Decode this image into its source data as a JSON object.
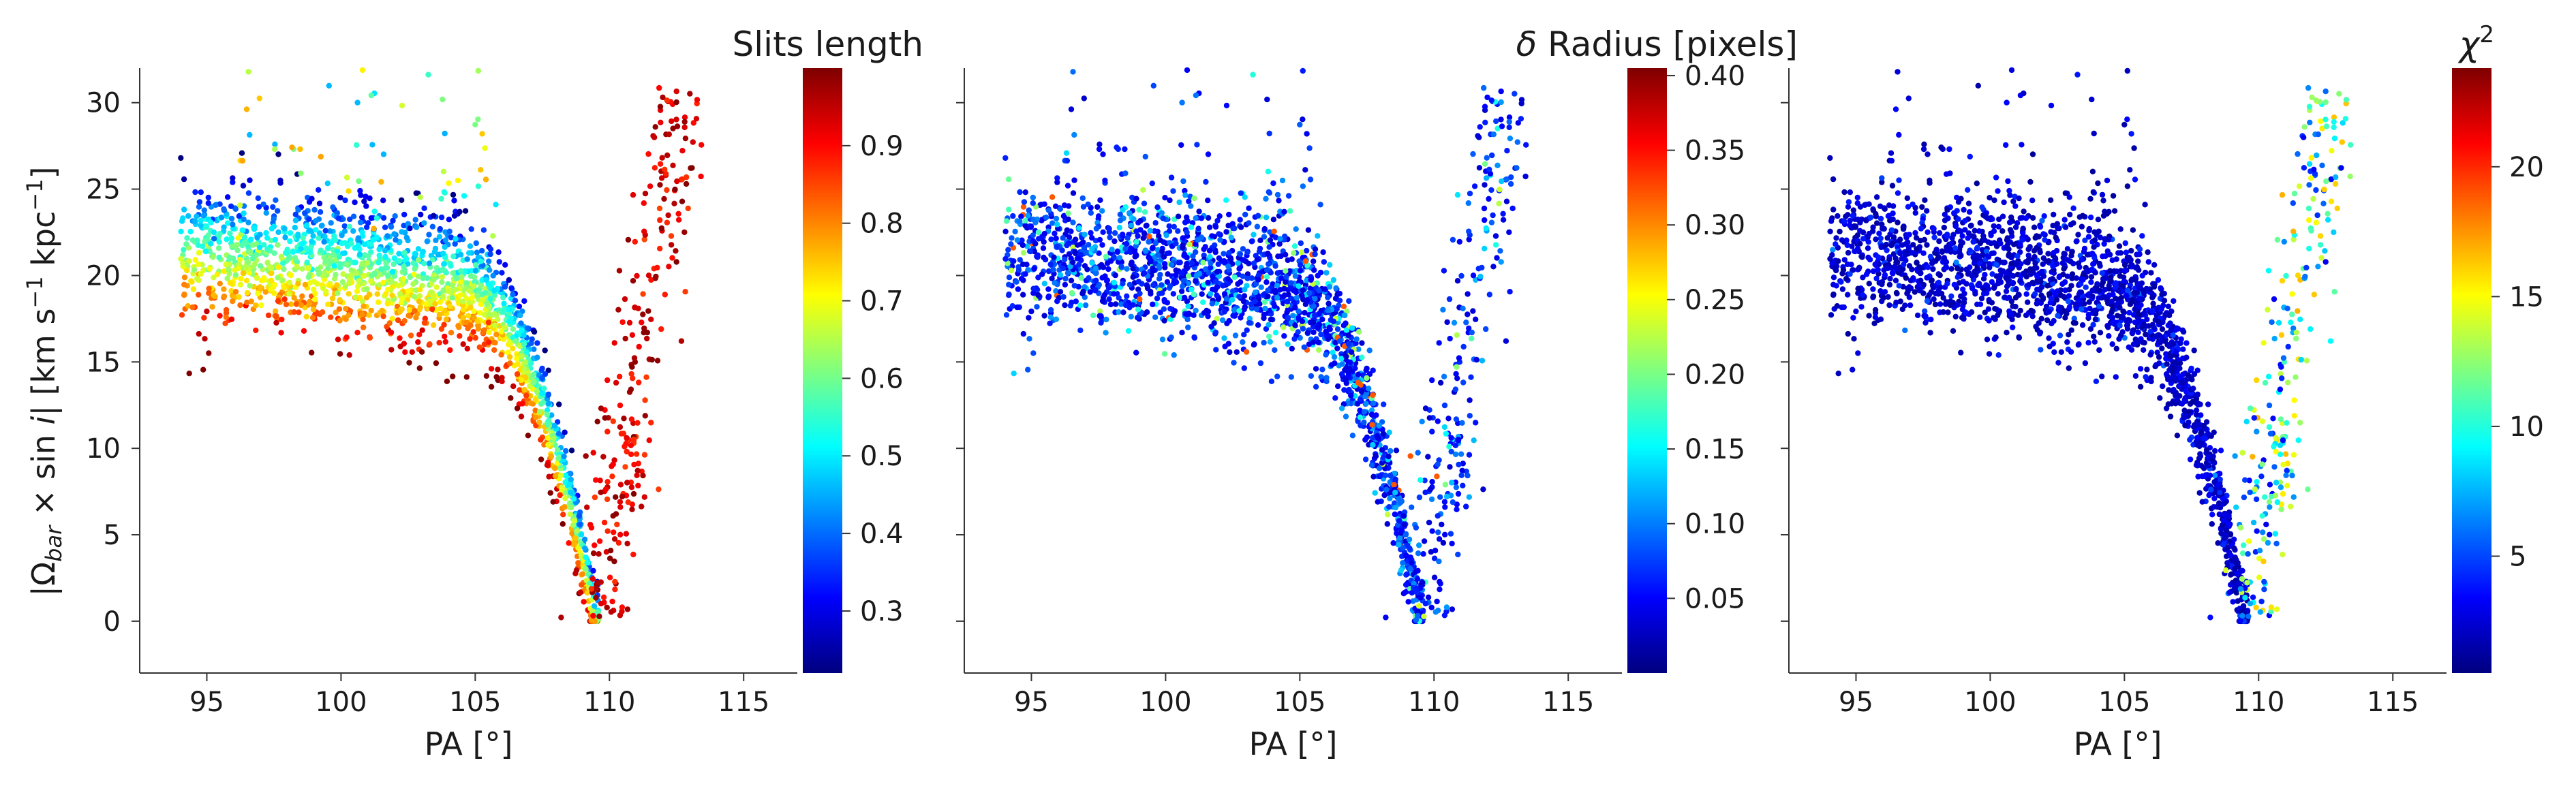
{
  "chart_data": [
    {
      "type": "scatter",
      "title": "",
      "xlabel": "PA [°]",
      "ylabel_parts": {
        "a": "|Ω",
        "b": "bar",
        "c": " × sin ",
        "d": "i",
        "e": "|   [km s",
        "f": "−1",
        "g": " kpc",
        "h": "−1",
        "i": "]"
      },
      "xlim": [
        92.5,
        117
      ],
      "ylim": [
        -3,
        32
      ],
      "xticks": [
        95,
        100,
        105,
        110,
        115
      ],
      "yticks": [
        0,
        5,
        10,
        15,
        20,
        25,
        30
      ],
      "colorbar": {
        "label": "Slits length",
        "range": [
          0.22,
          1.0
        ],
        "ticks": [
          0.3,
          0.4,
          0.5,
          0.6,
          0.7,
          0.8,
          0.9
        ],
        "colormap": "jet"
      },
      "trend": "red points (long slits) lie on the outer/upper edge of the arc, blue/cyan points (short slits) on the inner edge; right branch mostly red"
    },
    {
      "type": "scatter",
      "title": "",
      "xlabel": "PA [°]",
      "xlim": [
        92.5,
        117
      ],
      "ylim": [
        -3,
        32
      ],
      "xticks": [
        95,
        100,
        105,
        110,
        115
      ],
      "yticks": [
        0,
        5,
        10,
        15,
        20,
        25,
        30
      ],
      "colorbar": {
        "label": "δ Radius [pixels]",
        "label_parts": {
          "sym": "δ",
          "rest": " Radius [pixels]"
        },
        "range": [
          0.0,
          0.405
        ],
        "ticks": [
          0.05,
          0.1,
          0.15,
          0.2,
          0.25,
          0.3,
          0.35,
          0.4
        ],
        "tick_labels": [
          "0.05",
          "0.10",
          "0.15",
          "0.20",
          "0.25",
          "0.30",
          "0.35",
          "0.40"
        ],
        "colormap": "jet"
      },
      "trend": "mostly blue (0.02–0.1) with scattered cyan/green points"
    },
    {
      "type": "scatter",
      "title": "",
      "xlabel": "PA [°]",
      "xlim": [
        92.5,
        117
      ],
      "ylim": [
        -3,
        32
      ],
      "xticks": [
        95,
        100,
        105,
        110,
        115
      ],
      "yticks": [
        0,
        5,
        10,
        15,
        20,
        25,
        30
      ],
      "colorbar": {
        "label": "χ²",
        "label_parts": {
          "sym": "χ",
          "sup": "2"
        },
        "range": [
          0.5,
          23.8
        ],
        "ticks": [
          5,
          10,
          15,
          20
        ],
        "colormap": "jet"
      },
      "trend": "mostly dark blue (1–4); right branch goes cyan to yellow toward high values"
    }
  ]
}
